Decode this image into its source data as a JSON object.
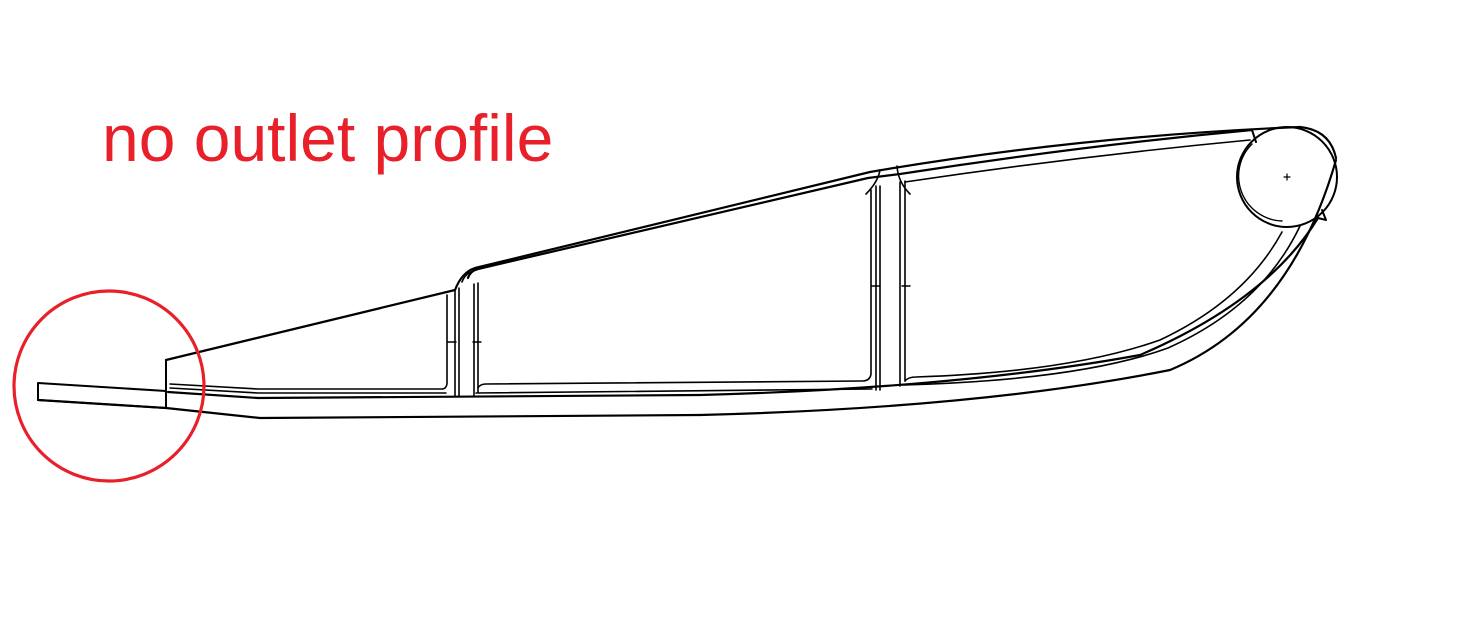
{
  "annotation": {
    "label": "no outlet profile",
    "color": "#e8202a"
  },
  "drawing": {
    "line_color": "#000000",
    "subject": "airfoil-rib-section",
    "highlight": "trailing-edge-circle"
  }
}
